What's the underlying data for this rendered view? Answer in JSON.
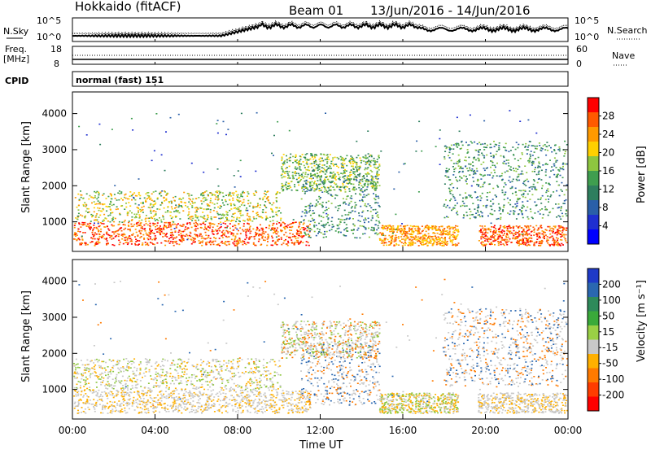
{
  "header": {
    "station": "Hokkaido (fitACF)",
    "beam": "Beam 01",
    "date_range": "13/Jun/2016 - 14/Jun/2016"
  },
  "strip_labels": {
    "n_sky": "N.Sky",
    "n_search": "N.Search",
    "freq": "Freq.",
    "freq_unit": "[MHz]",
    "nave": "Nave",
    "cpid": "CPID",
    "cpid_value": "normal (fast) 151"
  },
  "strip_ticks": {
    "noise_left": [
      "10^5",
      "10^0"
    ],
    "noise_right": [
      "10^5",
      "10^0"
    ],
    "freq_left": [
      "18",
      "8"
    ],
    "nave_right": [
      "60",
      "0"
    ]
  },
  "colorbars": {
    "power": {
      "label": "Power [dB]",
      "ticks": [
        "28",
        "24",
        "20",
        "16",
        "12",
        "8",
        "4"
      ],
      "colors": [
        "#ff0000",
        "#ff5a00",
        "#ff9a00",
        "#ffd000",
        "#8ec63f",
        "#3f9e4f",
        "#2e7e5e",
        "#2a5fa8",
        "#1f2fd0",
        "#0000ff"
      ]
    },
    "velocity": {
      "label": "Velocity [m s⁻¹]",
      "ticks": [
        "200",
        "100",
        "50",
        "15",
        "-15",
        "-50",
        "-100",
        "-200"
      ],
      "colors": [
        "#1f3ac8",
        "#2a67b0",
        "#2e8a5a",
        "#3aaa3a",
        "#9ad045",
        "#c8c8c8",
        "#ffb000",
        "#ff7a00",
        "#ff3c00",
        "#ff0000"
      ]
    }
  },
  "chart_data": [
    {
      "type": "heatmap",
      "name": "power",
      "xlabel": "",
      "ylabel": "Slant Range [km]",
      "yticks": [
        "1000",
        "2000",
        "3000",
        "4000"
      ],
      "ylim": [
        180,
        4600
      ],
      "x": [
        "00:00",
        "04:00",
        "08:00",
        "12:00",
        "16:00",
        "20:00",
        "00:00"
      ]
    },
    {
      "type": "heatmap",
      "name": "velocity",
      "xlabel": "Time UT",
      "ylabel": "Slant Range [km]",
      "yticks": [
        "1000",
        "2000",
        "3000",
        "4000"
      ],
      "ylim": [
        180,
        4600
      ],
      "x": [
        "00:00",
        "04:00",
        "08:00",
        "12:00",
        "16:00",
        "20:00",
        "00:00"
      ]
    }
  ]
}
